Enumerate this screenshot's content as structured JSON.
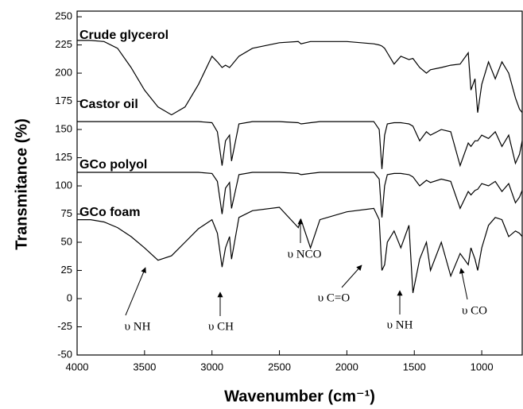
{
  "chart_data": {
    "type": "line",
    "xlabel": "Wavenumber (cm⁻¹)",
    "ylabel": "Transmitance (%)",
    "x": [
      4000,
      3900,
      3800,
      3700,
      3600,
      3500,
      3400,
      3300,
      3200,
      3100,
      3000,
      2960,
      2925,
      2900,
      2870,
      2855,
      2800,
      2700,
      2500,
      2360,
      2340,
      2270,
      2200,
      2000,
      1800,
      1760,
      1740,
      1720,
      1700,
      1650,
      1600,
      1540,
      1510,
      1460,
      1410,
      1380,
      1300,
      1230,
      1160,
      1100,
      1080,
      1050,
      1030,
      1000,
      950,
      900,
      850,
      800,
      750,
      720,
      700
    ],
    "series": [
      {
        "name": "Crude glycerol",
        "color": "#000000",
        "values": [
          229,
          229,
          228,
          222,
          205,
          185,
          170,
          163,
          170,
          190,
          215,
          210,
          205,
          207,
          205,
          207,
          215,
          222,
          227,
          228,
          226,
          228,
          228,
          228,
          226,
          225,
          224,
          222,
          218,
          208,
          215,
          212,
          213,
          205,
          200,
          203,
          205,
          207,
          208,
          218,
          185,
          195,
          165,
          190,
          210,
          195,
          210,
          200,
          178,
          168,
          165
        ]
      },
      {
        "name": "Castor oil",
        "color": "#000000",
        "values": [
          157,
          157,
          157,
          157,
          157,
          157,
          157,
          157,
          157,
          157,
          156,
          148,
          118,
          140,
          145,
          122,
          155,
          157,
          157,
          156,
          155,
          156,
          157,
          157,
          157,
          150,
          115,
          145,
          155,
          156,
          156,
          155,
          153,
          140,
          148,
          145,
          150,
          148,
          118,
          138,
          135,
          140,
          140,
          145,
          142,
          148,
          135,
          145,
          120,
          128,
          140
        ]
      },
      {
        "name": "GCo polyol",
        "color": "#000000",
        "values": [
          112,
          112,
          112,
          112,
          112,
          112,
          112,
          112,
          112,
          112,
          111,
          104,
          75,
          98,
          103,
          80,
          110,
          112,
          112,
          111,
          110,
          111,
          112,
          112,
          112,
          106,
          72,
          100,
          110,
          111,
          111,
          110,
          108,
          100,
          105,
          103,
          106,
          104,
          80,
          95,
          92,
          96,
          97,
          102,
          100,
          104,
          95,
          102,
          85,
          90,
          96
        ]
      },
      {
        "name": "GCo foam",
        "color": "#000000",
        "values": [
          70,
          70,
          68,
          63,
          55,
          45,
          34,
          38,
          50,
          62,
          70,
          58,
          28,
          45,
          55,
          35,
          72,
          78,
          81,
          63,
          70,
          45,
          70,
          77,
          80,
          70,
          25,
          30,
          50,
          60,
          45,
          65,
          5,
          35,
          50,
          25,
          50,
          20,
          40,
          30,
          45,
          35,
          25,
          45,
          65,
          72,
          70,
          55,
          60,
          58,
          55
        ]
      }
    ],
    "annotations": [
      "υ NH",
      "υ CH",
      "υ NCO",
      "υ C=O",
      "υ NH",
      "υ CO"
    ],
    "xlim": [
      4000,
      700
    ],
    "ylim": [
      -50,
      255
    ],
    "xticks": [
      4000,
      3500,
      3000,
      2500,
      2000,
      1500,
      1000
    ],
    "yticks": [
      -50,
      -25,
      0,
      25,
      50,
      75,
      100,
      125,
      150,
      175,
      200,
      225,
      250
    ]
  }
}
